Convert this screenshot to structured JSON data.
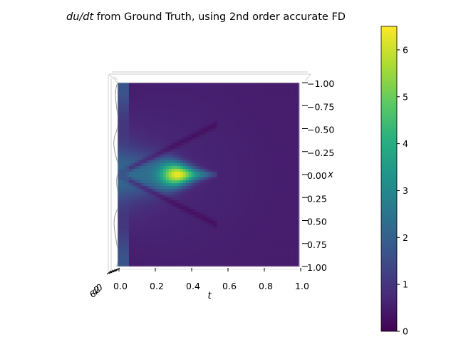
{
  "title": {
    "math": "du/dt",
    "text": " from Ground Truth, using 2nd order accurate FD"
  },
  "chart_data": {
    "type": "heatmap",
    "title": "du/dt from Ground Truth, using 2nd order accurate FD",
    "xlabel": "t",
    "ylabel": "x",
    "xlim": [
      0.0,
      1.0
    ],
    "ylim": [
      -1.0,
      1.0
    ],
    "x_ticks": [
      0.0,
      0.2,
      0.4,
      0.6,
      0.8,
      1.0
    ],
    "x_tick_labels": [
      "0.0",
      "0.2",
      "0.4",
      "0.6",
      "0.8",
      "1.0"
    ],
    "y_ticks": [
      -1.0,
      -0.75,
      -0.5,
      -0.25,
      0.0,
      0.25,
      0.5,
      0.75,
      1.0
    ],
    "y_tick_labels": [
      "1.00",
      "0.75",
      "0.50",
      "0.25",
      "0.00",
      "0.25",
      "0.50",
      "0.75",
      "1.00"
    ],
    "z_tick_fragments": [
      "6",
      "4",
      "2",
      "0"
    ],
    "colorbar": {
      "colormap": "viridis",
      "range": [
        0,
        6.5
      ],
      "ticks": [
        0,
        1,
        2,
        3,
        4,
        5,
        6
      ],
      "tick_labels": [
        "0",
        "1",
        "2",
        "3",
        "4",
        "5",
        "6"
      ]
    },
    "features": {
      "peak_value": 6.4,
      "peak_location": {
        "t": 0.33,
        "x": 0.0
      },
      "shock_front_slope_dx_dt": 2.0,
      "initial_edge_value_near_x0": 2.3,
      "edge_value_mid_x": 1.7,
      "background_value": 0.75
    }
  }
}
